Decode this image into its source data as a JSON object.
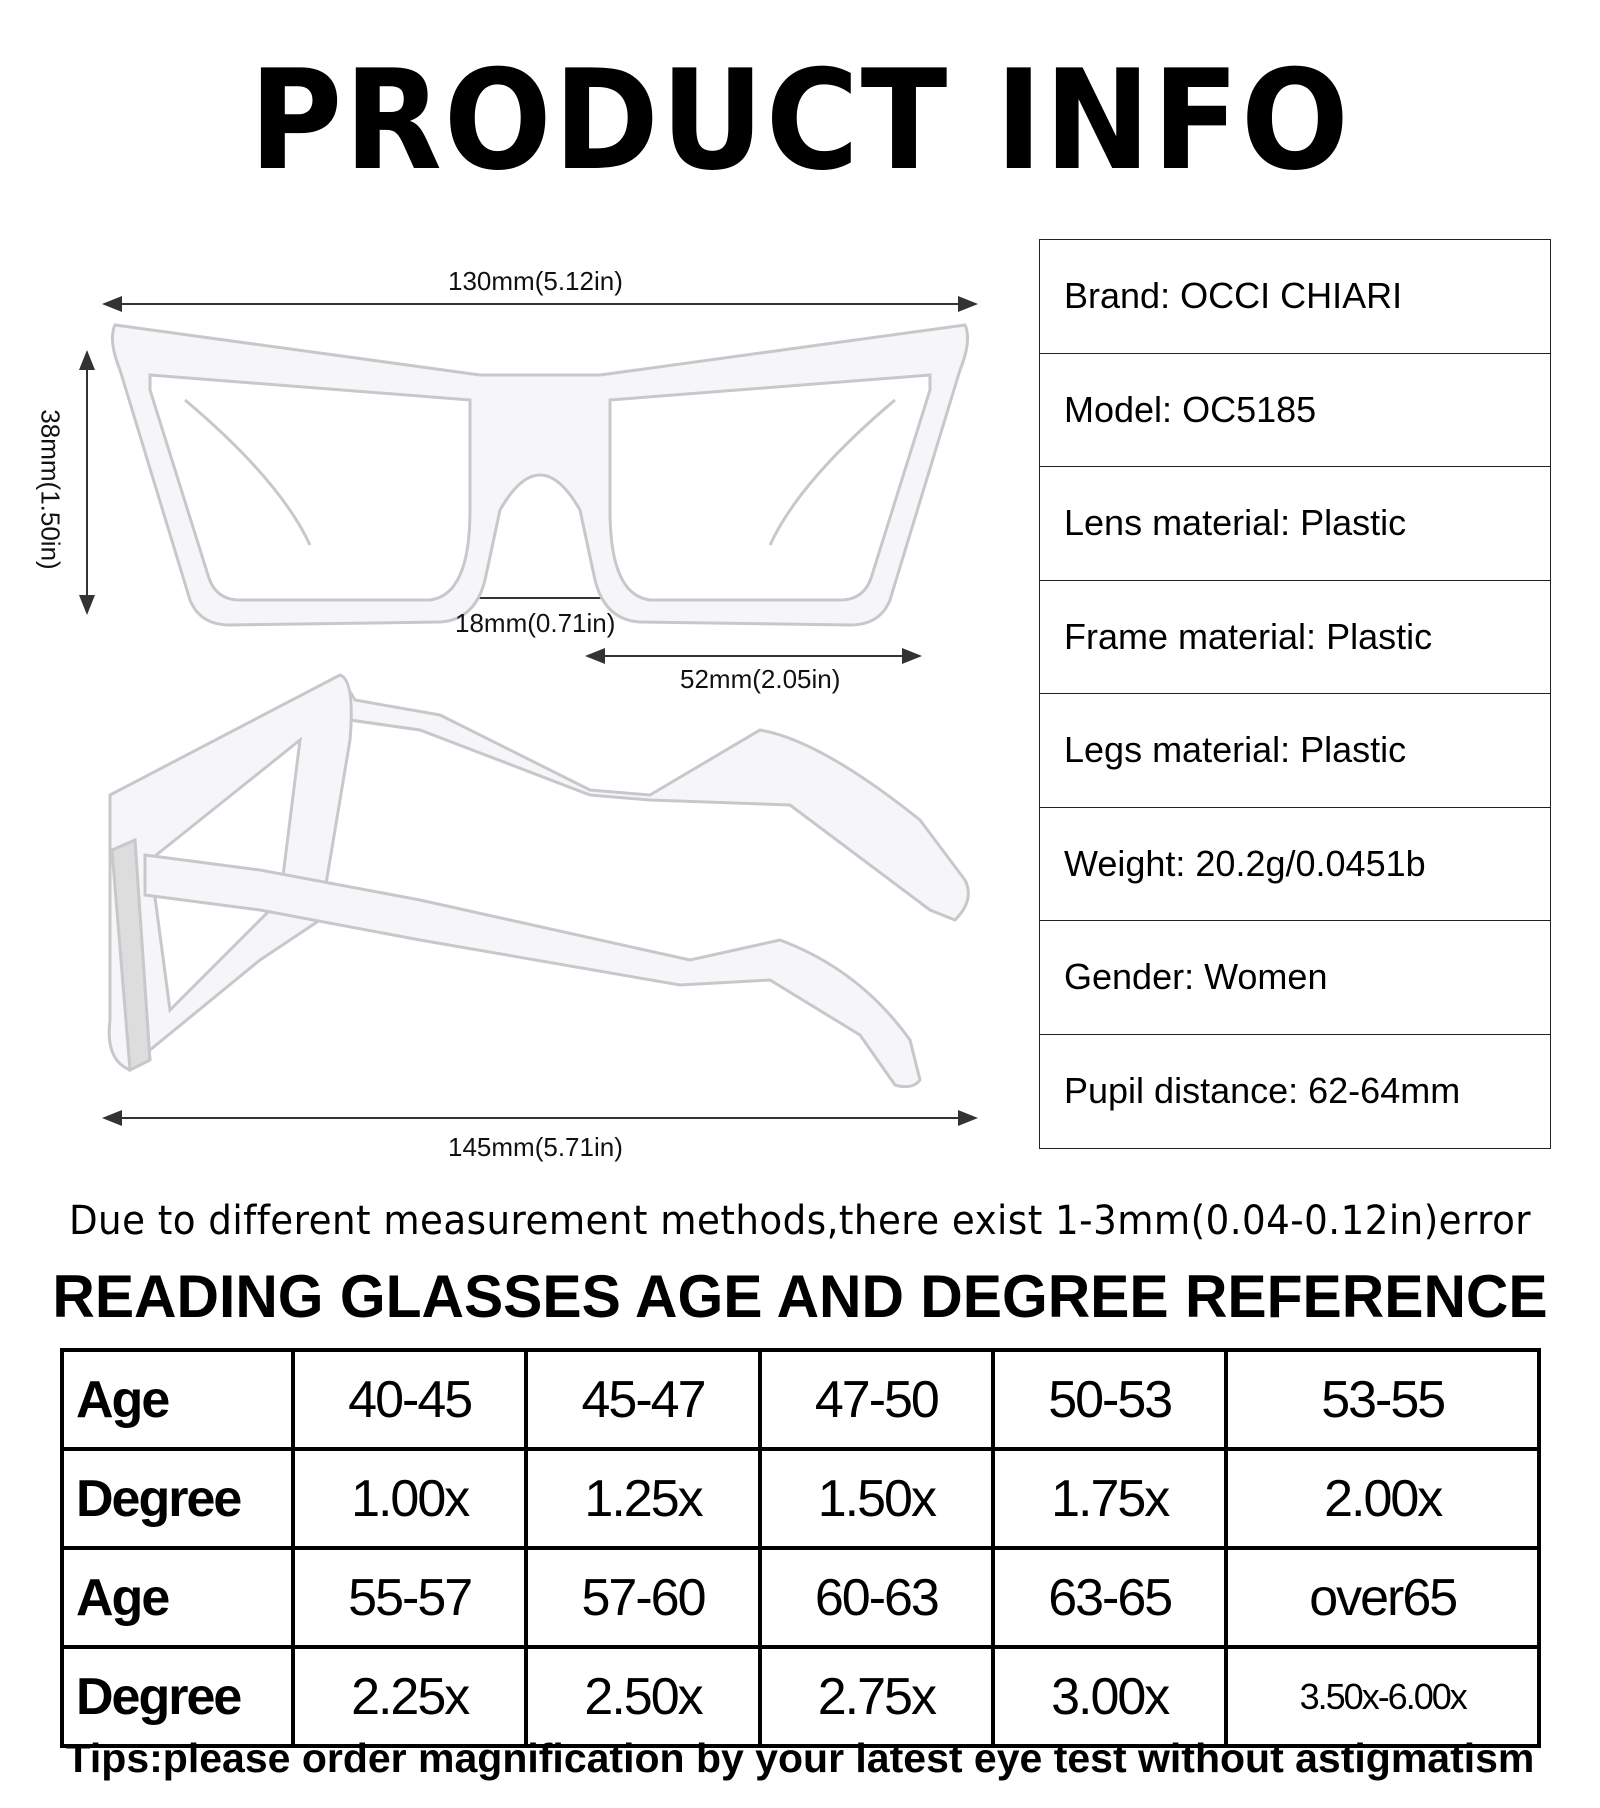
{
  "title": "PRODUCT INFO",
  "dimensions": {
    "total_width": "130mm(5.12in)",
    "lens_height": "38mm(1.50in)",
    "bridge": "18mm(0.71in)",
    "lens_width": "52mm(2.05in)",
    "temple_length": "145mm(5.71in)"
  },
  "specs": [
    {
      "key": "Brand:",
      "value": "OCCI CHIARI"
    },
    {
      "key": "Model:",
      "value": "OC5185"
    },
    {
      "key": "Lens material:",
      "value": "Plastic"
    },
    {
      "key": "Frame material:",
      "value": "Plastic"
    },
    {
      "key": "Legs material:",
      "value": "Plastic"
    },
    {
      "key": "Weight:",
      "value": "20.2g/0.0451b"
    },
    {
      "key": "Gender:",
      "value": "Women"
    },
    {
      "key": "Pupil distance:",
      "value": "62-64mm"
    }
  ],
  "disclaimer": "Due to different measurement methods,there exist 1-3mm(0.04-0.12in)error",
  "reference_heading": "READING GLASSES AGE AND DEGREE REFERENCE",
  "reference_table": [
    {
      "label": "Age",
      "cells": [
        "40-45",
        "45-47",
        "47-50",
        "50-53",
        "53-55"
      ]
    },
    {
      "label": "Degree",
      "cells": [
        "1.00x",
        "1.25x",
        "1.50x",
        "1.75x",
        "2.00x"
      ]
    },
    {
      "label": "Age",
      "cells": [
        "55-57",
        "57-60",
        "60-63",
        "63-65",
        "over65"
      ]
    },
    {
      "label": "Degree",
      "cells": [
        "2.25x",
        "2.50x",
        "2.75x",
        "3.00x",
        "3.50x-6.00x"
      ]
    }
  ],
  "tips": "Tips:please order magnification by your latest eye test without astigmatism"
}
